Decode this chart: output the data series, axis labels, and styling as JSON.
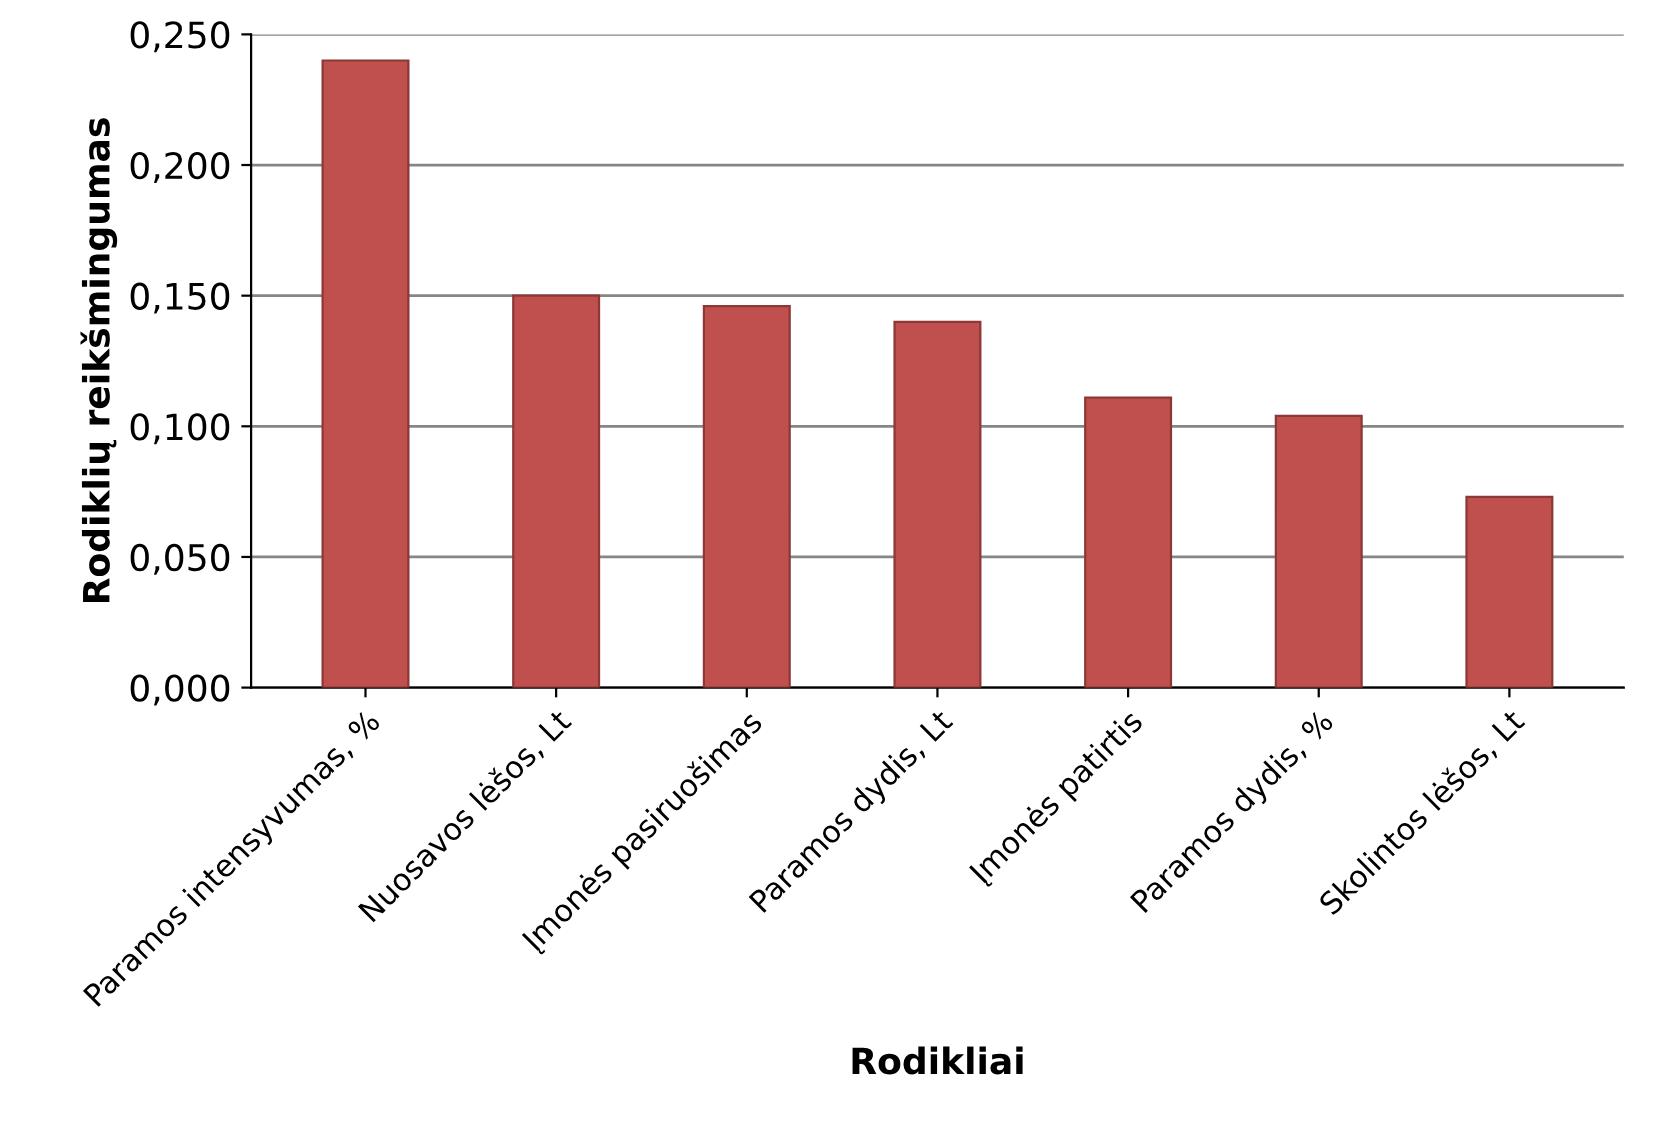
{
  "chart_data": {
    "type": "bar",
    "xlabel": "Rodikliai",
    "ylabel": "Rodiklių reikšmingumas",
    "categories": [
      "Paramos intensyvumas, %",
      "Nuosavos lėšos, Lt",
      "Įmonės pasiruošimas",
      "Paramos dydis, Lt",
      "Įmonės patirtis",
      "Paramos dydis, %",
      "Skolintos lėšos, Lt"
    ],
    "values": [
      0.24,
      0.15,
      0.146,
      0.14,
      0.111,
      0.104,
      0.073
    ],
    "color": "#c0504d",
    "ylim": [
      0,
      0.25
    ],
    "yticks": [
      {
        "value": 0,
        "label": "0,000"
      },
      {
        "value": 0.05,
        "label": "0,050"
      },
      {
        "value": 0.1,
        "label": "0,100"
      },
      {
        "value": 0.15,
        "label": "0,150"
      },
      {
        "value": 0.2,
        "label": "0,200"
      },
      {
        "value": 0.25,
        "label": "0,250"
      }
    ],
    "grid": "y"
  }
}
